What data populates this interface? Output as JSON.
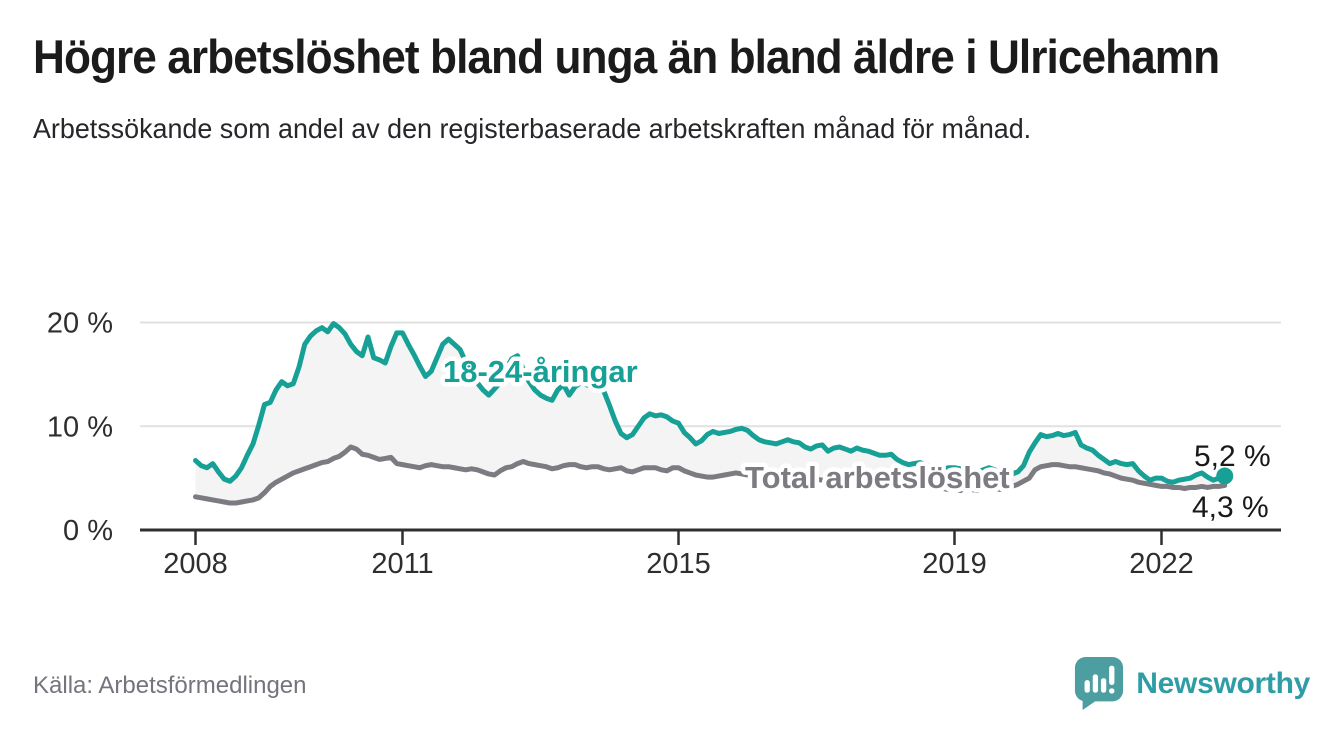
{
  "chart_data": {
    "type": "line",
    "title": "Högre arbetslöshet bland unga än bland äldre i Ulricehamn",
    "subtitle": "Arbetssökande som andel av den registerbaserade arbetskraften månad för månad.",
    "unit": "%",
    "frequency": "monthly",
    "x_start": "2008-01",
    "x_end": "2022-12",
    "ylim": [
      0,
      22
    ],
    "grid": "horizontal",
    "legend_position": "inline-labels",
    "yticks": [
      {
        "value": 0,
        "label": "0 %"
      },
      {
        "value": 10,
        "label": "10 %"
      },
      {
        "value": 20,
        "label": "20 %"
      }
    ],
    "xticks": [
      {
        "year": 2008,
        "label": "2008"
      },
      {
        "year": 2011,
        "label": "2011"
      },
      {
        "year": 2015,
        "label": "2015"
      },
      {
        "year": 2019,
        "label": "2019"
      },
      {
        "year": 2022,
        "label": "2022"
      }
    ],
    "series": [
      {
        "name": "18-24-åringar",
        "color": "#16a096",
        "end_value": 5.2,
        "end_label": "5,2 %",
        "label_pos": {
          "x": 443,
          "y": 382
        },
        "end_label_pos": {
          "x": 1194,
          "y": 466
        },
        "values": [
          6.7,
          6.2,
          6.0,
          6.4,
          5.6,
          4.9,
          4.7,
          5.2,
          6.0,
          7.2,
          8.3,
          10.1,
          12.1,
          12.3,
          13.5,
          14.3,
          13.9,
          14.1,
          15.7,
          17.9,
          18.7,
          19.2,
          19.5,
          19.1,
          19.9,
          19.5,
          18.9,
          17.9,
          17.2,
          16.8,
          18.6,
          16.6,
          16.4,
          16.1,
          17.7,
          19.0,
          19.0,
          17.9,
          16.9,
          15.8,
          14.8,
          15.3,
          16.6,
          17.9,
          18.4,
          17.9,
          17.4,
          16.2,
          15.2,
          14.2,
          13.5,
          13.0,
          13.6,
          14.2,
          15.5,
          16.5,
          16.8,
          15.5,
          14.3,
          13.5,
          13.0,
          12.7,
          12.5,
          13.5,
          14.0,
          13.0,
          13.8,
          14.2,
          14.0,
          13.8,
          13.6,
          13.4,
          12.0,
          10.5,
          9.3,
          8.9,
          9.2,
          10.0,
          10.8,
          11.2,
          11.0,
          11.1,
          10.9,
          10.5,
          10.3,
          9.4,
          8.9,
          8.3,
          8.6,
          9.2,
          9.5,
          9.3,
          9.4,
          9.5,
          9.7,
          9.8,
          9.6,
          9.1,
          8.7,
          8.5,
          8.4,
          8.3,
          8.5,
          8.7,
          8.5,
          8.4,
          8.0,
          7.8,
          8.1,
          8.2,
          7.6,
          7.9,
          8.0,
          7.8,
          7.6,
          7.9,
          7.7,
          7.6,
          7.4,
          7.2,
          7.2,
          7.3,
          6.8,
          6.5,
          6.3,
          6.4,
          6.5,
          6.3,
          6.0,
          5.9,
          5.9,
          6.0,
          6.0,
          5.9,
          5.8,
          5.7,
          5.6,
          5.8,
          6.0,
          5.8,
          5.5,
          5.4,
          5.4,
          5.6,
          6.2,
          7.5,
          8.4,
          9.2,
          9.0,
          9.1,
          9.3,
          9.1,
          9.2,
          9.4,
          8.2,
          7.9,
          7.7,
          7.2,
          6.8,
          6.4,
          6.6,
          6.4,
          6.3,
          6.4,
          5.7,
          5.2,
          4.8,
          5.0,
          5.0,
          4.7,
          4.6,
          4.8,
          4.9,
          5.0,
          5.3,
          5.5,
          5.1,
          4.8,
          5.0,
          5.2
        ]
      },
      {
        "name": "Total arbetslöshet",
        "color": "#7b7b81",
        "end_value": 4.3,
        "end_label": "4,3 %",
        "label_pos": {
          "x": 745,
          "y": 488
        },
        "end_label_pos": {
          "x": 1192,
          "y": 517
        },
        "values": [
          3.2,
          3.1,
          3.0,
          2.9,
          2.8,
          2.7,
          2.6,
          2.6,
          2.7,
          2.8,
          2.9,
          3.1,
          3.6,
          4.2,
          4.6,
          4.9,
          5.2,
          5.5,
          5.7,
          5.9,
          6.1,
          6.3,
          6.5,
          6.6,
          6.9,
          7.1,
          7.5,
          8.0,
          7.8,
          7.3,
          7.2,
          7.0,
          6.8,
          6.9,
          7.0,
          6.4,
          6.3,
          6.2,
          6.1,
          6.0,
          6.2,
          6.3,
          6.2,
          6.1,
          6.1,
          6.0,
          5.9,
          5.8,
          5.9,
          5.8,
          5.6,
          5.4,
          5.3,
          5.7,
          6.0,
          6.1,
          6.4,
          6.6,
          6.4,
          6.3,
          6.2,
          6.1,
          5.9,
          6.0,
          6.2,
          6.3,
          6.3,
          6.1,
          6.0,
          6.1,
          6.1,
          5.9,
          5.8,
          5.9,
          6.0,
          5.7,
          5.6,
          5.8,
          6.0,
          6.0,
          6.0,
          5.8,
          5.7,
          6.0,
          6.0,
          5.7,
          5.5,
          5.3,
          5.2,
          5.1,
          5.1,
          5.2,
          5.3,
          5.4,
          5.5,
          5.4,
          5.3,
          5.2,
          5.1,
          5.1,
          5.0,
          5.1,
          5.2,
          5.2,
          5.1,
          5.0,
          5.0,
          4.9,
          4.9,
          4.8,
          4.8,
          4.7,
          4.7,
          4.8,
          4.8,
          4.7,
          4.6,
          4.5,
          4.5,
          4.4,
          4.4,
          4.3,
          4.3,
          4.2,
          4.2,
          4.3,
          4.3,
          4.2,
          4.1,
          4.0,
          4.0,
          3.9,
          3.9,
          3.8,
          4.0,
          3.9,
          3.8,
          4.0,
          4.1,
          4.0,
          3.9,
          4.0,
          4.2,
          4.4,
          4.7,
          5.0,
          5.8,
          6.1,
          6.2,
          6.3,
          6.3,
          6.2,
          6.1,
          6.1,
          6.0,
          5.9,
          5.8,
          5.7,
          5.5,
          5.4,
          5.2,
          5.0,
          4.9,
          4.8,
          4.6,
          4.5,
          4.4,
          4.3,
          4.2,
          4.2,
          4.1,
          4.1,
          4.0,
          4.1,
          4.1,
          4.2,
          4.1,
          4.2,
          4.2,
          4.3
        ]
      }
    ]
  },
  "footer": {
    "source": "Källa: Arbetsförmedlingen",
    "brand": "Newsworthy"
  },
  "colors": {
    "accent_teal": "#16a096",
    "series_gray": "#7b7b81",
    "area_fill": "#f4f4f4",
    "gridline": "#e1e1e1",
    "axis": "#2f2f2f",
    "logo_bubble": "#4c9ea0",
    "brand_text": "#2e9da5",
    "muted_text": "#74747d"
  }
}
